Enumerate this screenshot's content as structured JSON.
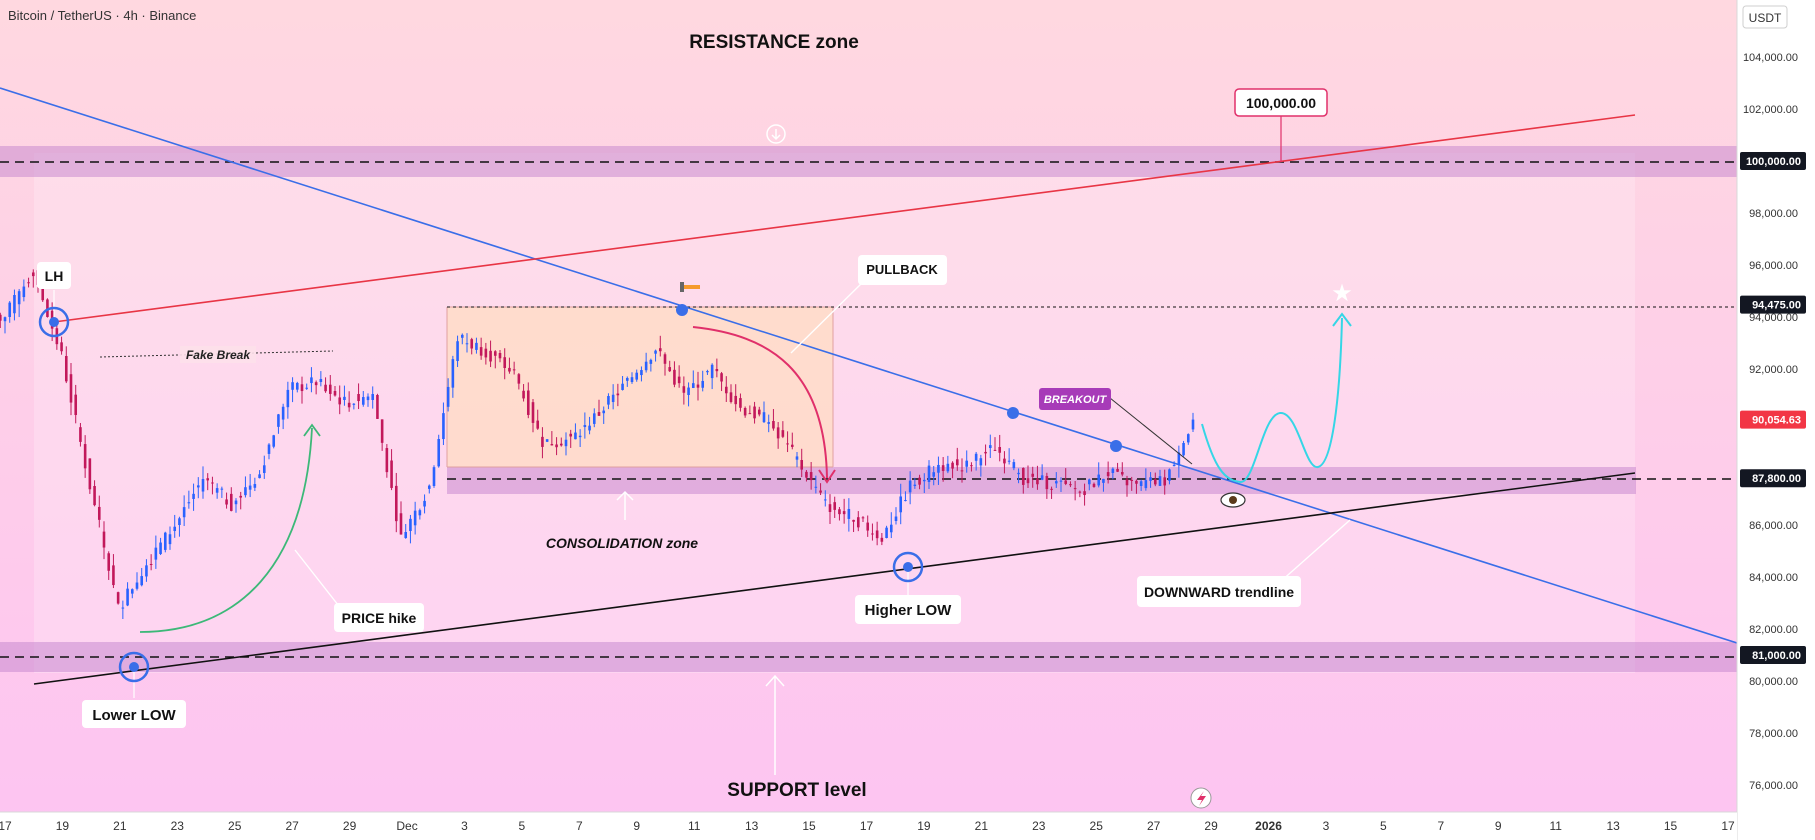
{
  "header": {
    "symbol_line": "Bitcoin / TetherUS · 4h · Binance"
  },
  "price_axis": {
    "currency_label": "USDT",
    "ticks": [
      "76,000.00",
      "78,000.00",
      "80,000.00",
      "82,000.00",
      "84,000.00",
      "86,000.00",
      "88,000.00",
      "90,000.00",
      "92,000.00",
      "94,000.00",
      "96,000.00",
      "98,000.00",
      "100,000.00",
      "102,000.00",
      "104,000.00"
    ],
    "tick_values": [
      76000,
      78000,
      80000,
      82000,
      84000,
      86000,
      88000,
      90000,
      92000,
      94000,
      96000,
      98000,
      100000,
      102000,
      104000
    ],
    "tags": [
      {
        "label": "100,000.00",
        "value": 100000,
        "color": "#131722"
      },
      {
        "label": "94,475.00",
        "value": 94475,
        "color": "#131722"
      },
      {
        "label": "90,054.63",
        "value": 90054.63,
        "color": "#f23645"
      },
      {
        "label": "87,800.00",
        "value": 87800,
        "color": "#131722"
      },
      {
        "label": "81,000.00",
        "value": 81000,
        "color": "#131722"
      }
    ]
  },
  "time_axis": {
    "labels": [
      "17",
      "19",
      "21",
      "23",
      "25",
      "27",
      "29",
      "Dec",
      "3",
      "5",
      "7",
      "9",
      "11",
      "13",
      "15",
      "17",
      "19",
      "21",
      "23",
      "25",
      "27",
      "29",
      "2026",
      "3",
      "5",
      "7",
      "9",
      "11",
      "13",
      "15",
      "17"
    ],
    "bold_labels": [
      "2026"
    ]
  },
  "annotations": {
    "resistance": "RESISTANCE zone",
    "support": "SUPPORT level",
    "consolidation": "CONSOLIDATION zone",
    "lh": "LH",
    "lower_low": "Lower LOW",
    "higher_low": "Higher LOW",
    "price_hike": "PRICE hike",
    "pullback": "PULLBACK",
    "breakout": "BREAKOUT",
    "downward": "DOWNWARD trendline",
    "fake_break": "Fake Break",
    "target_label": "100,000.00"
  },
  "colors": {
    "up": "#2962ff",
    "down": "#c2185b",
    "trend_blue": "#3a6ee8",
    "trend_red": "#e83545",
    "zone": "#c98ad0",
    "projection": "#35d6e6",
    "hike_arrow": "#3cb878",
    "pullback_arrow": "#e0306a"
  },
  "chart_data": {
    "type": "candlestick",
    "title": "Bitcoin / TetherUS · 4h · Binance",
    "y_unit": "USDT",
    "ylim": [
      75000,
      105000
    ],
    "x_range": [
      "Nov 17",
      "Jan 17"
    ],
    "last_price": 90054.63,
    "horizontal_levels": [
      100000,
      94475,
      87800,
      81000
    ],
    "zones": [
      {
        "name": "RESISTANCE zone",
        "from": 99400,
        "to": 100600
      },
      {
        "name": "CONSOLIDATION zone",
        "from": 87200,
        "to": 88300
      },
      {
        "name": "SUPPORT level",
        "from": 80400,
        "to": 81600
      }
    ],
    "target": 100000,
    "candles_approx": [
      {
        "date": "Nov 17",
        "close": 94000
      },
      {
        "date": "Nov 18",
        "close": 95800
      },
      {
        "date": "Nov 19",
        "close": 92500
      },
      {
        "date": "Nov 20",
        "close": 87500
      },
      {
        "date": "Nov 21",
        "close": 82800
      },
      {
        "date": "Nov 22",
        "close": 84500
      },
      {
        "date": "Nov 23",
        "close": 86000
      },
      {
        "date": "Nov 24",
        "close": 87800
      },
      {
        "date": "Nov 25",
        "close": 86800
      },
      {
        "date": "Nov 26",
        "close": 88000
      },
      {
        "date": "Nov 27",
        "close": 91200
      },
      {
        "date": "Nov 28",
        "close": 91500
      },
      {
        "date": "Nov 29",
        "close": 90700
      },
      {
        "date": "Nov 30",
        "close": 91000
      },
      {
        "date": "Dec 1",
        "close": 85500
      },
      {
        "date": "Dec 2",
        "close": 87500
      },
      {
        "date": "Dec 3",
        "close": 93200
      },
      {
        "date": "Dec 4",
        "close": 92700
      },
      {
        "date": "Dec 5",
        "close": 91800
      },
      {
        "date": "Dec 6",
        "close": 89200
      },
      {
        "date": "Dec 7",
        "close": 89300
      },
      {
        "date": "Dec 8",
        "close": 90300
      },
      {
        "date": "Dec 9",
        "close": 91500
      },
      {
        "date": "Dec 10",
        "close": 92800
      },
      {
        "date": "Dec 11",
        "close": 91000
      },
      {
        "date": "Dec 12",
        "close": 92000
      },
      {
        "date": "Dec 13",
        "close": 90500
      },
      {
        "date": "Dec 14",
        "close": 90000
      },
      {
        "date": "Dec 15",
        "close": 88500
      },
      {
        "date": "Dec 16",
        "close": 86800
      },
      {
        "date": "Dec 17",
        "close": 86300
      },
      {
        "date": "Dec 18",
        "close": 85500
      },
      {
        "date": "Dec 19",
        "close": 87500
      },
      {
        "date": "Dec 20",
        "close": 88300
      },
      {
        "date": "Dec 21",
        "close": 88300
      },
      {
        "date": "Dec 22",
        "close": 89000
      },
      {
        "date": "Dec 23",
        "close": 87800
      },
      {
        "date": "Dec 24",
        "close": 87600
      },
      {
        "date": "Dec 25",
        "close": 87300
      },
      {
        "date": "Dec 26",
        "close": 88000
      },
      {
        "date": "Dec 27",
        "close": 87500
      },
      {
        "date": "Dec 28",
        "close": 87700
      },
      {
        "date": "Dec 29",
        "close": 90054.63
      }
    ]
  }
}
